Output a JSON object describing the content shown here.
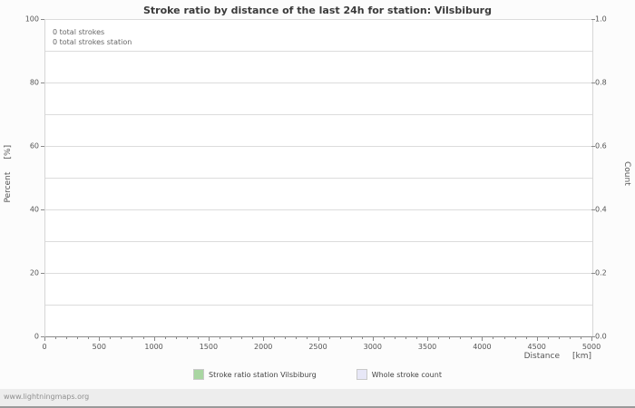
{
  "title": "Stroke ratio by distance of the last 24h for station: Vilsbiburg",
  "plot": {
    "annotations": [
      "0 total strokes",
      "0 total strokes station"
    ]
  },
  "axes": {
    "left": {
      "label": "Percent",
      "unit": "[%]",
      "ticks": [
        "0",
        "20",
        "40",
        "60",
        "80",
        "100"
      ]
    },
    "right": {
      "label": "Count",
      "ticks": [
        "0.0",
        "0.2",
        "0.4",
        "0.6",
        "0.8",
        "1.0"
      ]
    },
    "x": {
      "label": "Distance",
      "unit": "[km]",
      "ticks": [
        "0",
        "500",
        "1000",
        "1500",
        "2000",
        "2500",
        "3000",
        "3500",
        "4000",
        "4500",
        "5000"
      ]
    }
  },
  "legend": {
    "items": [
      {
        "label": "Stroke ratio station Vilsbiburg",
        "color": "#a9d6a2"
      },
      {
        "label": "Whole stroke count",
        "color": "#e7e7f7"
      }
    ]
  },
  "footer": {
    "text": "www.lightningmaps.org"
  },
  "colors": {
    "grid": "#dcdcdc",
    "axis": "#8a8a8a",
    "text": "#555555",
    "title": "#3a3a3a"
  },
  "chart_data": {
    "type": "line",
    "title": "Stroke ratio by distance of the last 24h for station: Vilsbiburg",
    "xlabel": "Distance [km]",
    "ylabel_left": "Percent [%]",
    "ylabel_right": "Count",
    "xlim": [
      0,
      5000
    ],
    "ylim_left": [
      0,
      100
    ],
    "ylim_right": [
      0,
      1
    ],
    "x_ticks": [
      0,
      500,
      1000,
      1500,
      2000,
      2500,
      3000,
      3500,
      4000,
      4500,
      5000
    ],
    "left_ticks": [
      0,
      20,
      40,
      60,
      80,
      100
    ],
    "right_ticks": [
      0.0,
      0.2,
      0.4,
      0.6,
      0.8,
      1.0
    ],
    "grid": "horizontal",
    "legend_position": "bottom",
    "total_strokes": 0,
    "total_strokes_station": 0,
    "series": [
      {
        "name": "Stroke ratio station Vilsbiburg",
        "color": "#a9d6a2",
        "axis": "left",
        "x": [],
        "values": []
      },
      {
        "name": "Whole stroke count",
        "color": "#e7e7f7",
        "axis": "right",
        "x": [],
        "values": []
      }
    ]
  }
}
